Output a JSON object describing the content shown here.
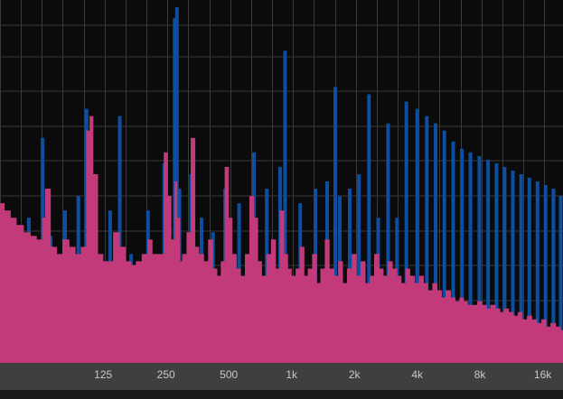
{
  "colors": {
    "background": "#0b0b0c",
    "grid": "#3a3a3a",
    "axis_bar": "#3e3f41",
    "series_a": "#0d4ea0",
    "series_b": "#c23a7a",
    "bottom_strip": "#1a1a1b",
    "label": "#c9c9c9"
  },
  "axis": {
    "scale": "log",
    "xlim": [
      40,
      20000
    ],
    "ticks": [
      {
        "label": "125",
        "value": 125
      },
      {
        "label": "250",
        "value": 250
      },
      {
        "label": "500",
        "value": 500
      },
      {
        "label": "1k",
        "value": 1000
      },
      {
        "label": "2k",
        "value": 2000
      },
      {
        "label": "4k",
        "value": 4000
      },
      {
        "label": "8k",
        "value": 8000
      },
      {
        "label": "16k",
        "value": 16000
      }
    ]
  },
  "chart_data": {
    "type": "bar",
    "grid": true,
    "ylim": [
      0,
      1
    ],
    "series": [
      {
        "values": [
          [
            42,
            0.36
          ],
          [
            48,
            0.38
          ],
          [
            55,
            0.4
          ],
          [
            64,
            0.62
          ],
          [
            70,
            0.35
          ],
          [
            75,
            0.28
          ],
          [
            82,
            0.42
          ],
          [
            95,
            0.46
          ],
          [
            104,
            0.7
          ],
          [
            110,
            0.5
          ],
          [
            118,
            0.3
          ],
          [
            135,
            0.42
          ],
          [
            150,
            0.68
          ],
          [
            170,
            0.3
          ],
          [
            205,
            0.42
          ],
          [
            245,
            0.55
          ],
          [
            275,
            0.95
          ],
          [
            282,
            0.98
          ],
          [
            290,
            0.48
          ],
          [
            330,
            0.52
          ],
          [
            370,
            0.4
          ],
          [
            420,
            0.36
          ],
          [
            480,
            0.48
          ],
          [
            560,
            0.44
          ],
          [
            660,
            0.58
          ],
          [
            760,
            0.48
          ],
          [
            880,
            0.54
          ],
          [
            930,
            0.86
          ],
          [
            1100,
            0.44
          ],
          [
            1300,
            0.48
          ],
          [
            1480,
            0.5
          ],
          [
            1620,
            0.76
          ],
          [
            1700,
            0.46
          ],
          [
            1900,
            0.48
          ],
          [
            2100,
            0.52
          ],
          [
            2350,
            0.74
          ],
          [
            2600,
            0.4
          ],
          [
            2900,
            0.66
          ],
          [
            3200,
            0.4
          ],
          [
            3550,
            0.72
          ],
          [
            4000,
            0.7
          ],
          [
            4450,
            0.68
          ],
          [
            4900,
            0.66
          ],
          [
            5400,
            0.64
          ],
          [
            5950,
            0.61
          ],
          [
            6550,
            0.59
          ],
          [
            7200,
            0.58
          ],
          [
            7950,
            0.57
          ],
          [
            8750,
            0.56
          ],
          [
            9600,
            0.55
          ],
          [
            10500,
            0.54
          ],
          [
            11500,
            0.53
          ],
          [
            12600,
            0.52
          ],
          [
            13800,
            0.51
          ],
          [
            15100,
            0.5
          ],
          [
            16500,
            0.49
          ],
          [
            18000,
            0.48
          ],
          [
            19500,
            0.46
          ]
        ]
      },
      {
        "values": [
          [
            40,
            0.44
          ],
          [
            42,
            0.42
          ],
          [
            45,
            0.4
          ],
          [
            48,
            0.38
          ],
          [
            52,
            0.36
          ],
          [
            56,
            0.35
          ],
          [
            60,
            0.34
          ],
          [
            64,
            0.4
          ],
          [
            66,
            0.48
          ],
          [
            70,
            0.32
          ],
          [
            75,
            0.3
          ],
          [
            80,
            0.34
          ],
          [
            86,
            0.32
          ],
          [
            92,
            0.3
          ],
          [
            98,
            0.32
          ],
          [
            104,
            0.64
          ],
          [
            108,
            0.68
          ],
          [
            112,
            0.52
          ],
          [
            118,
            0.3
          ],
          [
            125,
            0.28
          ],
          [
            132,
            0.28
          ],
          [
            140,
            0.36
          ],
          [
            150,
            0.32
          ],
          [
            160,
            0.28
          ],
          [
            170,
            0.27
          ],
          [
            180,
            0.28
          ],
          [
            192,
            0.3
          ],
          [
            205,
            0.34
          ],
          [
            215,
            0.3
          ],
          [
            230,
            0.3
          ],
          [
            245,
            0.58
          ],
          [
            255,
            0.46
          ],
          [
            265,
            0.34
          ],
          [
            275,
            0.5
          ],
          [
            283,
            0.4
          ],
          [
            292,
            0.28
          ],
          [
            300,
            0.3
          ],
          [
            315,
            0.36
          ],
          [
            330,
            0.62
          ],
          [
            345,
            0.32
          ],
          [
            360,
            0.3
          ],
          [
            380,
            0.28
          ],
          [
            400,
            0.34
          ],
          [
            420,
            0.26
          ],
          [
            440,
            0.24
          ],
          [
            460,
            0.28
          ],
          [
            480,
            0.54
          ],
          [
            500,
            0.4
          ],
          [
            520,
            0.3
          ],
          [
            545,
            0.26
          ],
          [
            570,
            0.24
          ],
          [
            600,
            0.3
          ],
          [
            630,
            0.46
          ],
          [
            660,
            0.4
          ],
          [
            690,
            0.28
          ],
          [
            720,
            0.24
          ],
          [
            760,
            0.3
          ],
          [
            800,
            0.34
          ],
          [
            840,
            0.26
          ],
          [
            880,
            0.42
          ],
          [
            920,
            0.3
          ],
          [
            960,
            0.26
          ],
          [
            1000,
            0.24
          ],
          [
            1050,
            0.26
          ],
          [
            1100,
            0.32
          ],
          [
            1150,
            0.24
          ],
          [
            1200,
            0.26
          ],
          [
            1260,
            0.3
          ],
          [
            1320,
            0.22
          ],
          [
            1380,
            0.26
          ],
          [
            1450,
            0.34
          ],
          [
            1520,
            0.26
          ],
          [
            1600,
            0.24
          ],
          [
            1680,
            0.28
          ],
          [
            1760,
            0.22
          ],
          [
            1850,
            0.26
          ],
          [
            1950,
            0.3
          ],
          [
            2050,
            0.24
          ],
          [
            2150,
            0.28
          ],
          [
            2260,
            0.22
          ],
          [
            2380,
            0.24
          ],
          [
            2500,
            0.3
          ],
          [
            2630,
            0.26
          ],
          [
            2760,
            0.24
          ],
          [
            2900,
            0.28
          ],
          [
            3050,
            0.26
          ],
          [
            3200,
            0.24
          ],
          [
            3360,
            0.22
          ],
          [
            3530,
            0.26
          ],
          [
            3700,
            0.24
          ],
          [
            3900,
            0.22
          ],
          [
            4100,
            0.24
          ],
          [
            4300,
            0.22
          ],
          [
            4500,
            0.2
          ],
          [
            4750,
            0.22
          ],
          [
            5000,
            0.2
          ],
          [
            5250,
            0.18
          ],
          [
            5500,
            0.2
          ],
          [
            5800,
            0.18
          ],
          [
            6100,
            0.17
          ],
          [
            6400,
            0.18
          ],
          [
            6700,
            0.17
          ],
          [
            7000,
            0.16
          ],
          [
            7400,
            0.16
          ],
          [
            7800,
            0.17
          ],
          [
            8200,
            0.16
          ],
          [
            8600,
            0.15
          ],
          [
            9000,
            0.16
          ],
          [
            9500,
            0.15
          ],
          [
            10000,
            0.14
          ],
          [
            10500,
            0.15
          ],
          [
            11000,
            0.14
          ],
          [
            11600,
            0.13
          ],
          [
            12200,
            0.14
          ],
          [
            12800,
            0.12
          ],
          [
            13500,
            0.13
          ],
          [
            14200,
            0.12
          ],
          [
            15000,
            0.11
          ],
          [
            15800,
            0.12
          ],
          [
            16600,
            0.1
          ],
          [
            17500,
            0.11
          ],
          [
            18500,
            0.1
          ],
          [
            19500,
            0.09
          ]
        ]
      }
    ]
  }
}
